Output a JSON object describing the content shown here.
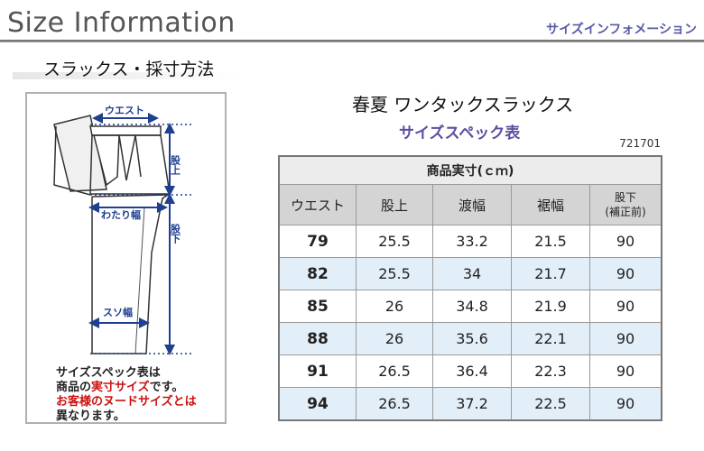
{
  "header": {
    "title": "Size Information",
    "subtitle": "サイズインフォメーション"
  },
  "section": {
    "heading": "スラックス・採寸方法"
  },
  "diagram": {
    "labels": {
      "waist": "ウエスト",
      "rise": "股上",
      "thigh": "わたり幅",
      "inseam": "股下",
      "hem": "スソ幅"
    },
    "note": {
      "line1": "サイズスペック表は",
      "line2_pre": "商品の",
      "line2_red": "実寸サイズ",
      "line2_post": "です。",
      "line3": "お客様のヌードサイズとは",
      "line4": "異なります。"
    }
  },
  "product": {
    "title": "春夏 ワンタックスラックス",
    "spec_title": "サイズスペック表",
    "code": "721701"
  },
  "table": {
    "caption": "商品実寸(ｃｍ)",
    "headers": [
      "ウエスト",
      "股上",
      "渡幅",
      "裾幅",
      "股下",
      "(補正前)"
    ],
    "rows": [
      [
        "79",
        "25.5",
        "33.2",
        "21.5",
        "90"
      ],
      [
        "82",
        "25.5",
        "34",
        "21.7",
        "90"
      ],
      [
        "85",
        "26",
        "34.8",
        "21.9",
        "90"
      ],
      [
        "88",
        "26",
        "35.6",
        "22.1",
        "90"
      ],
      [
        "91",
        "26.5",
        "36.4",
        "22.3",
        "90"
      ],
      [
        "94",
        "26.5",
        "37.2",
        "22.5",
        "90"
      ]
    ]
  },
  "colors": {
    "accent_purple": "#5a4fa0",
    "arrow_blue": "#1f3f8f",
    "row_alt": "#e2eef8",
    "note_red": "#cc1111"
  }
}
